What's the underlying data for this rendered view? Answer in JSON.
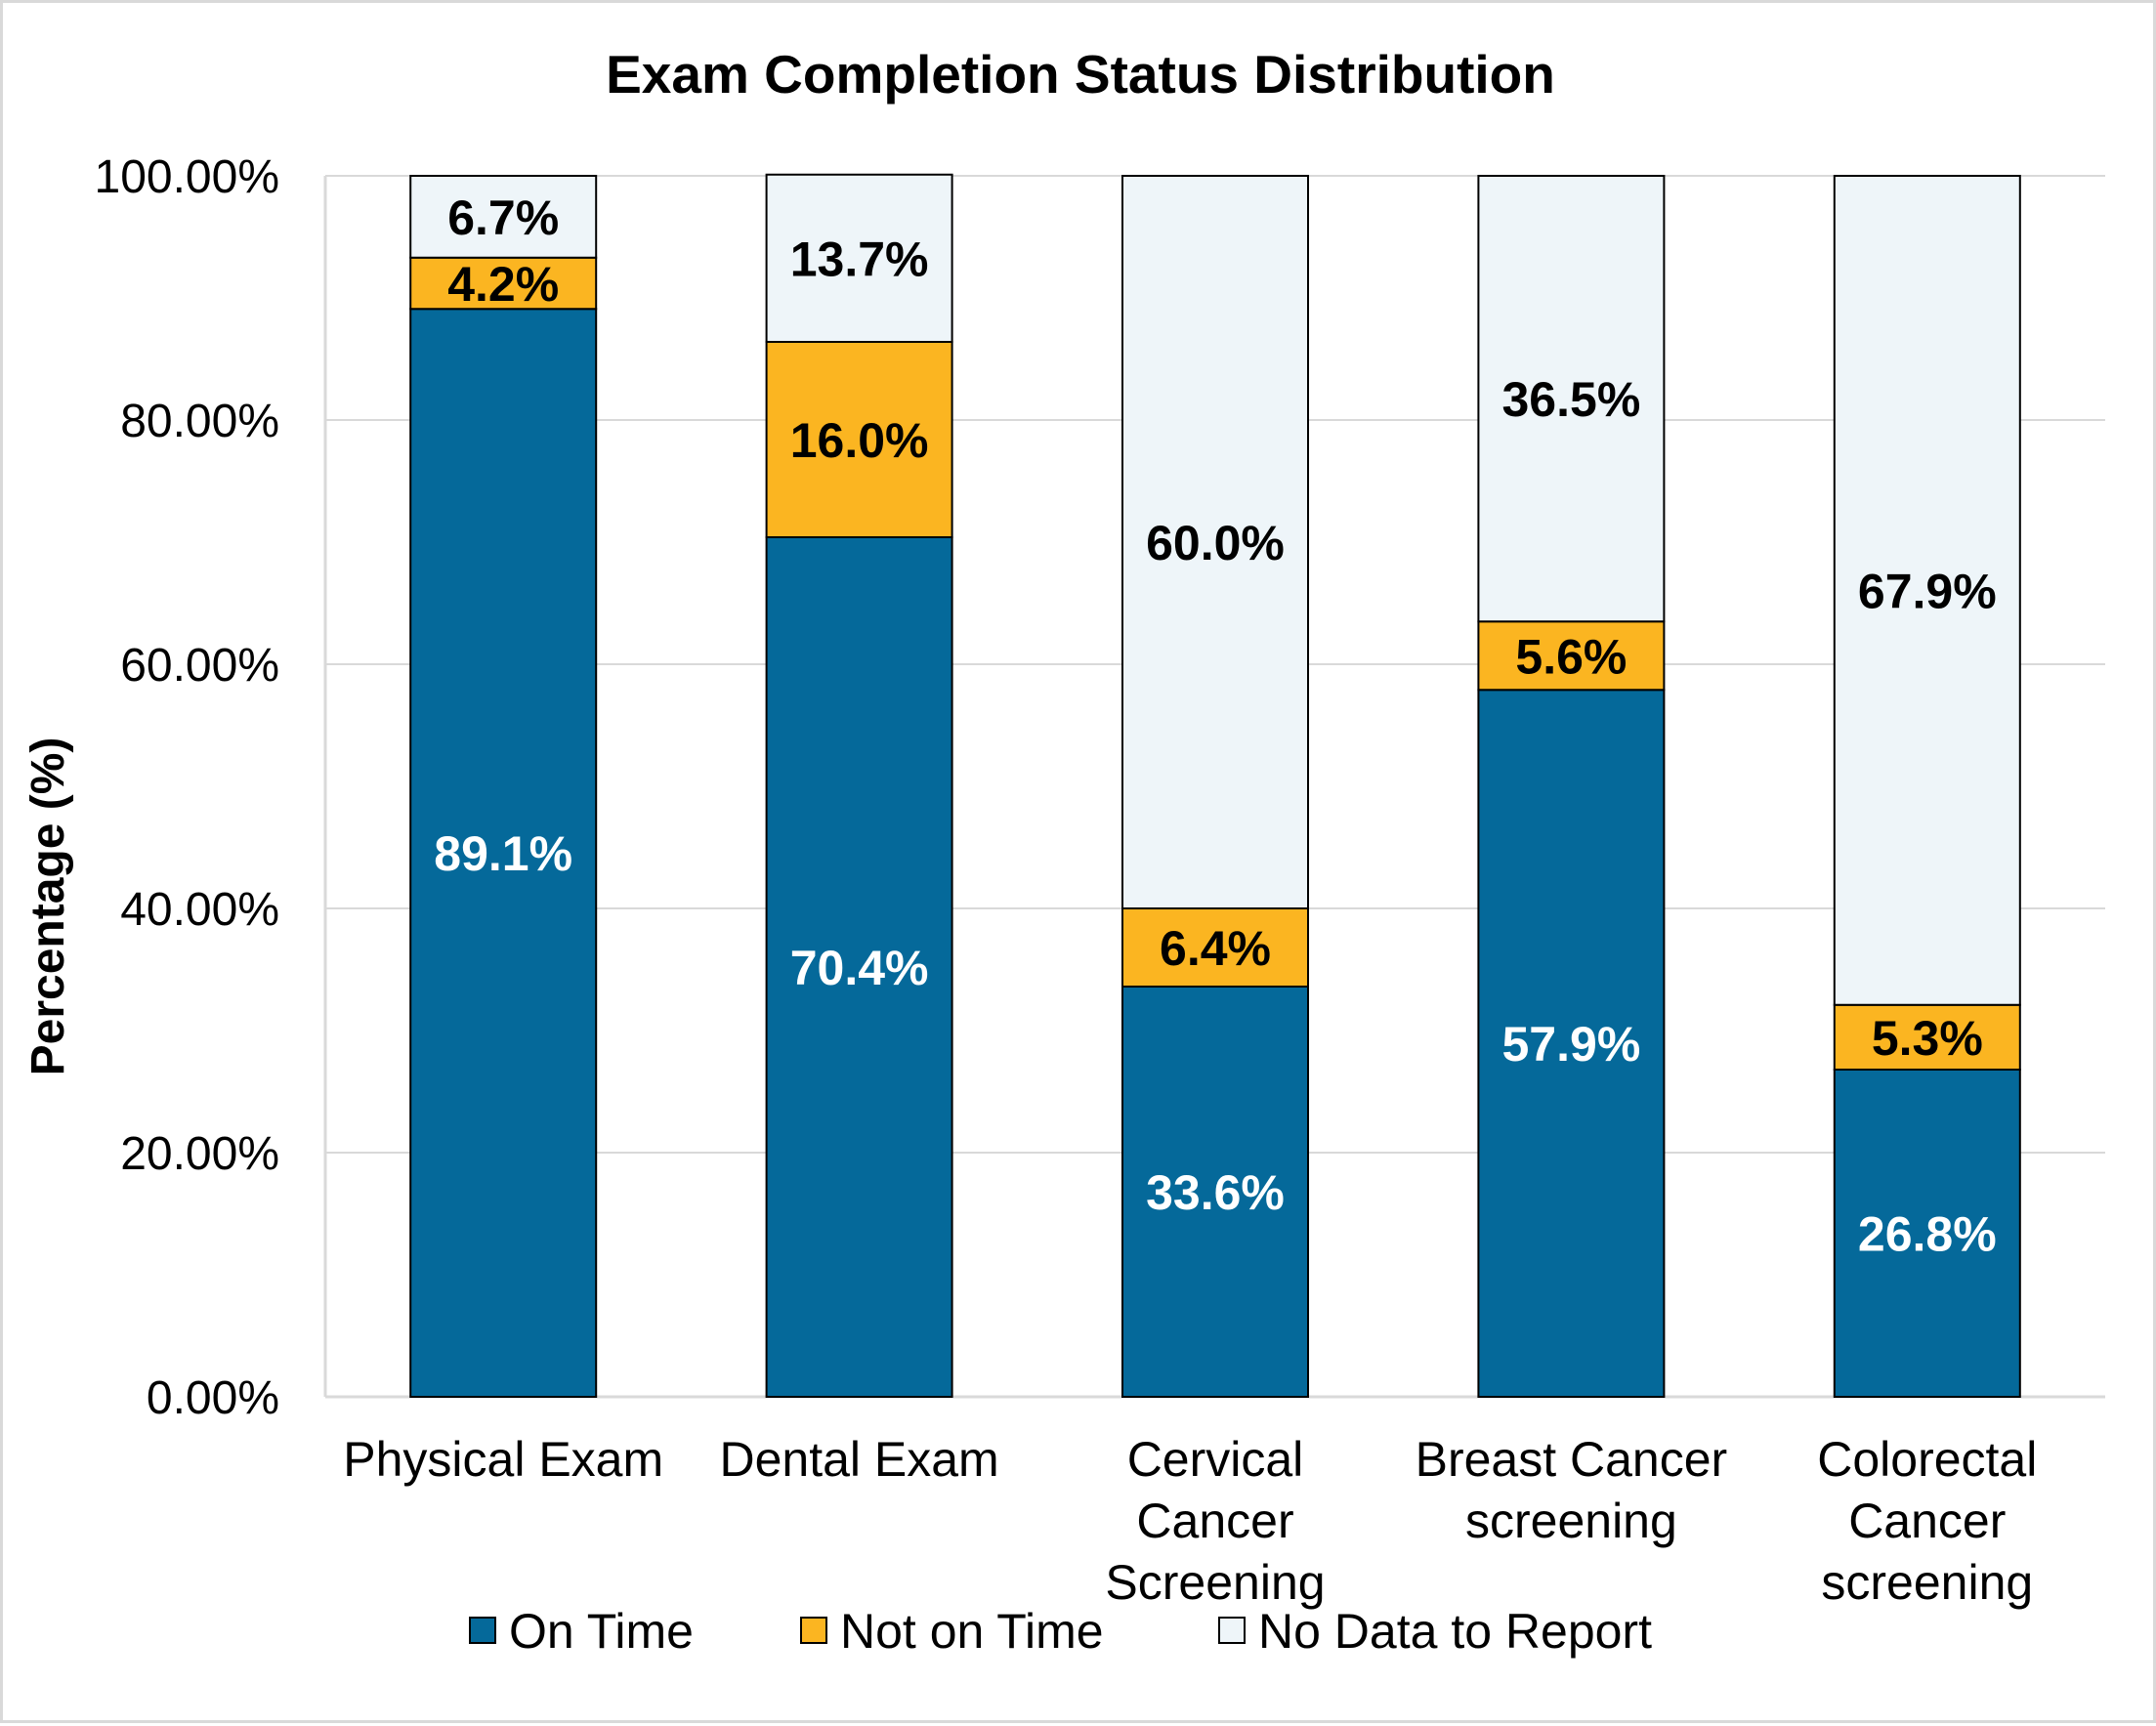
{
  "chart_data": {
    "type": "bar",
    "stacked": true,
    "title": "Exam Completion Status Distribution",
    "xlabel": "",
    "ylabel": "Percentage (%)",
    "ylim": [
      0,
      100
    ],
    "yticks": [
      "0.00%",
      "20.00%",
      "40.00%",
      "60.00%",
      "80.00%",
      "100.00%"
    ],
    "categories": [
      [
        "Physical Exam"
      ],
      [
        "Dental Exam"
      ],
      [
        "Cervical",
        "Cancer",
        "Screening"
      ],
      [
        "Breast Cancer",
        "screening"
      ],
      [
        "Colorectal",
        "Cancer",
        "screening"
      ]
    ],
    "series": [
      {
        "name": "On Time",
        "color": "#05699a",
        "label_color": "#ffffff",
        "values": [
          89.1,
          70.4,
          33.6,
          57.9,
          26.8
        ],
        "labels": [
          "89.1%",
          "70.4%",
          "33.6%",
          "57.9%",
          "26.8%"
        ]
      },
      {
        "name": "Not on Time",
        "color": "#fbb521",
        "label_color": "#000000",
        "values": [
          4.2,
          16.0,
          6.4,
          5.6,
          5.3
        ],
        "labels": [
          "4.2%",
          "16.0%",
          "6.4%",
          "5.6%",
          "5.3%"
        ]
      },
      {
        "name": "No Data to Report",
        "color": "#eef5f9",
        "label_color": "#000000",
        "values": [
          6.7,
          13.7,
          60.0,
          36.5,
          67.9
        ],
        "labels": [
          "6.7%",
          "13.7%",
          "60.0%",
          "36.5%",
          "67.9%"
        ]
      }
    ],
    "grid": true,
    "legend_position": "bottom"
  }
}
